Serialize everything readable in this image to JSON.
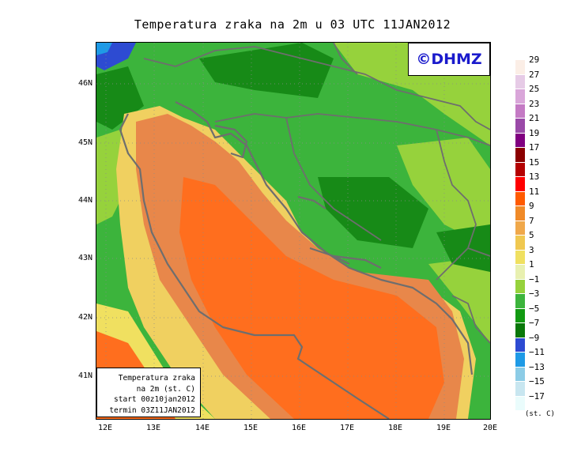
{
  "title": "Temperatura zraka na 2m u 03 UTC 11JAN2012",
  "watermark": "©DHMZ",
  "info_box": {
    "line1": "Temperatura zraka",
    "line2": "na 2m (st. C)",
    "line3": "start 00z10jan2012",
    "line4": "termin 03Z11JAN2012"
  },
  "lat_labels": [
    "46N",
    "45N",
    "44N",
    "43N",
    "42N",
    "41N"
  ],
  "lon_labels": [
    "12E",
    "13E",
    "14E",
    "15E",
    "16E",
    "17E",
    "18E",
    "19E",
    "20E"
  ],
  "legend": {
    "unit": "(st. C)",
    "labels": [
      "29",
      "27",
      "25",
      "23",
      "21",
      "19",
      "17",
      "15",
      "13",
      "11",
      "9",
      "7",
      "5",
      "3",
      "1",
      "−1",
      "−3",
      "−5",
      "−7",
      "−9",
      "−11",
      "−13",
      "−15",
      "−17"
    ],
    "colors": [
      "#fbeee6",
      "#e6cbe6",
      "#d9a6d9",
      "#c47ac4",
      "#9a4aa8",
      "#800080",
      "#8b0000",
      "#b40000",
      "#ff0000",
      "#ff5a00",
      "#f08a28",
      "#f0a84a",
      "#f0c850",
      "#f0e060",
      "#e8f0b0",
      "#96d23c",
      "#3cb43c",
      "#129a12",
      "#0a780a",
      "#2d4bd2",
      "#1e9ae6",
      "#8ccce6",
      "#c8e6f0",
      "#eafcfc"
    ]
  },
  "colors": {
    "sea_warm": "#ff6e1e",
    "sea_mid": "#e8874a",
    "coast_yellow": "#f0d060",
    "land_green": "#3cb43c",
    "land_dark": "#178a17",
    "land_light": "#96d23c",
    "cold_blue": "#2d4bd2",
    "border_gray": "#6e6e6e"
  }
}
